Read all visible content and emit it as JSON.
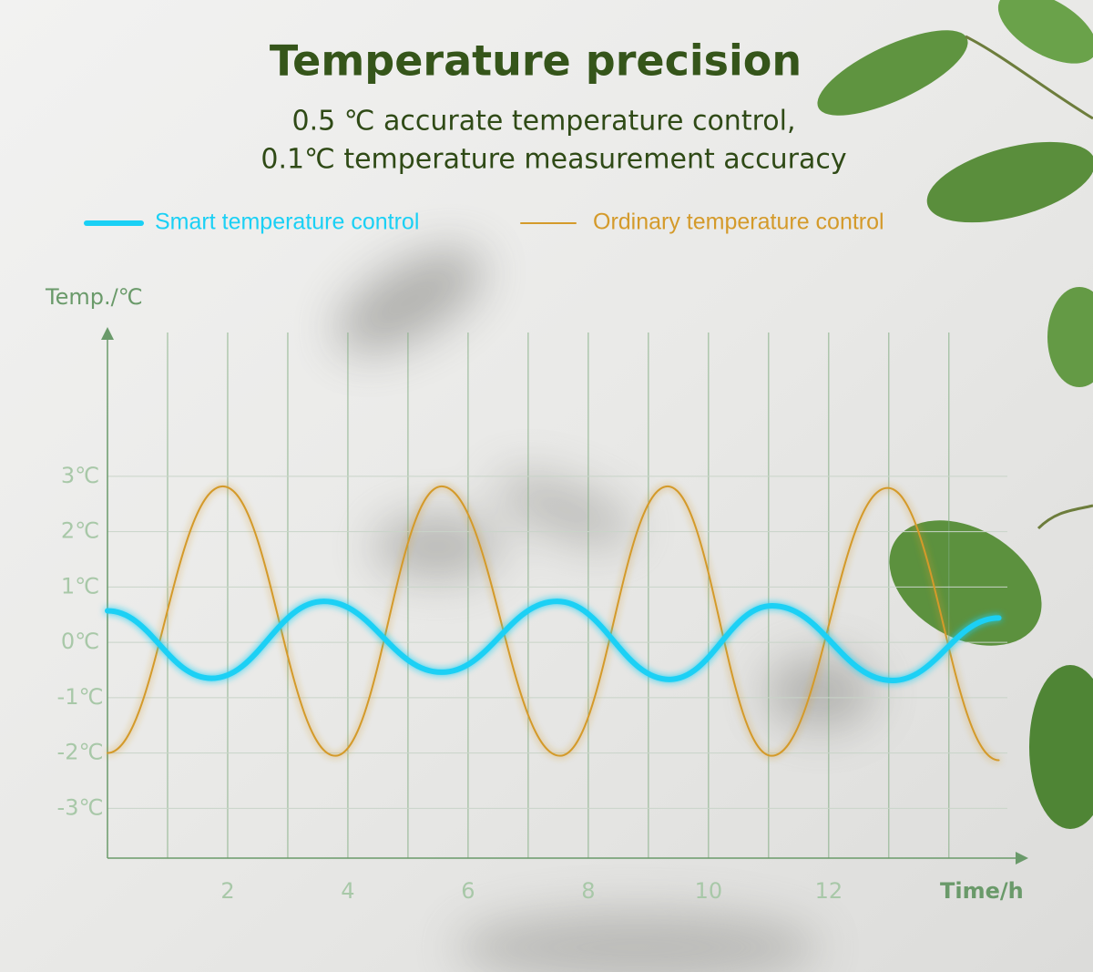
{
  "chart_data": {
    "type": "line",
    "title": "Temperature precision",
    "subtitle": [
      "0.5 ℃ accurate temperature control,",
      "0.1℃ temperature measurement accuracy"
    ],
    "y_label": "Temp./℃",
    "x_label": "Time/h",
    "xlim": [
      0,
      15.2
    ],
    "ylim": [
      -3.9,
      5.6
    ],
    "xticks": [
      2,
      4,
      6,
      8,
      10,
      12
    ],
    "x_gridlines": [
      1,
      2,
      3,
      4,
      5,
      6,
      7,
      8,
      9,
      10,
      11,
      12,
      13,
      14
    ],
    "yticks": [
      {
        "value": -3,
        "label": "-3℃"
      },
      {
        "value": -2,
        "label": "-2℃"
      },
      {
        "value": -1,
        "label": "-1℃"
      },
      {
        "value": 0,
        "label": "0℃"
      },
      {
        "value": 1,
        "label": "1℃"
      },
      {
        "value": 2,
        "label": "2℃"
      },
      {
        "value": 3,
        "label": "3℃"
      }
    ],
    "grid": true,
    "legend": "top-left",
    "series": [
      {
        "name": "Smart temperature control",
        "color": "#1ad0f5",
        "x": [
          0,
          1.73,
          3.6,
          5.56,
          7.48,
          9.35,
          11.06,
          13.06,
          14.83
        ],
        "values": [
          0.57,
          -0.65,
          0.74,
          -0.54,
          0.74,
          -0.67,
          0.66,
          -0.69,
          0.44
        ]
      },
      {
        "name": "Ordinary temperature control",
        "color": "#d49a2a",
        "x": [
          0,
          1.92,
          3.79,
          5.56,
          7.53,
          9.32,
          11.05,
          12.98,
          14.83
        ],
        "values": [
          -2.0,
          2.82,
          -2.05,
          2.82,
          -2.05,
          2.82,
          -2.05,
          2.79,
          -2.13
        ]
      }
    ]
  }
}
